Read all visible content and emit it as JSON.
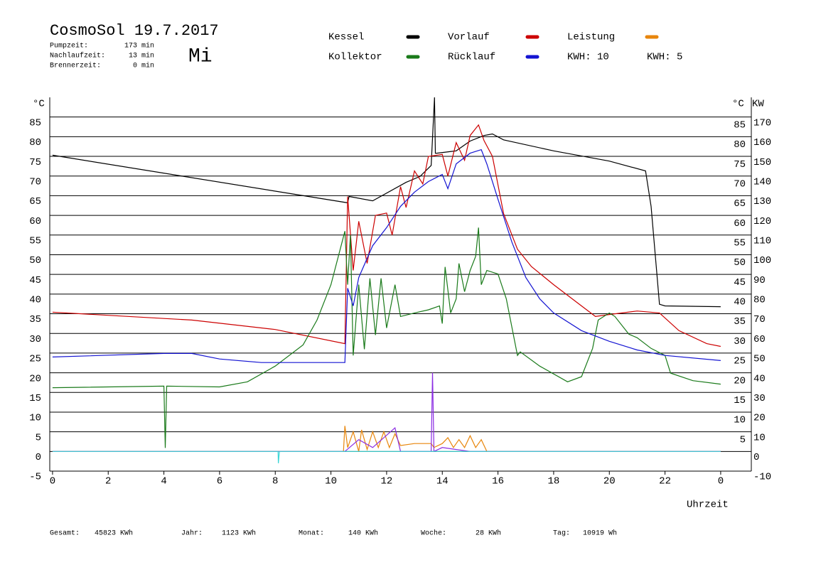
{
  "chart_data": {
    "type": "line",
    "title": "CosmoSol 19.7.2017",
    "weekday": "Mi",
    "weekday_color": "#1a1ad6",
    "info": [
      {
        "label": "Pumpzeit:",
        "value": "173 min"
      },
      {
        "label": "Nachlaufzeit:",
        "value": "13 min"
      },
      {
        "label": "Brennerzeit:",
        "value": "0 min"
      }
    ],
    "kwh_labels": [
      {
        "text": "KWH: 10",
        "color": "#e8860c"
      },
      {
        "text": "KWH: 5",
        "color": "#8a2be2"
      }
    ],
    "y_label": "°C",
    "y_label_right": "°C",
    "y2_label": "KW",
    "x_label": "Uhrzeit",
    "footer": [
      {
        "label": "Gesamt:",
        "value": "45823 KWh"
      },
      {
        "label": "Jahr:",
        "value": "1123 KWh"
      },
      {
        "label": "Monat:",
        "value": "140 KWh"
      },
      {
        "label": "Woche:",
        "value": "28 KWh"
      },
      {
        "label": "Tag:",
        "value": "10919 Wh"
      }
    ],
    "xlim": [
      -0.1,
      25.1
    ],
    "xticks": [
      0,
      2,
      4,
      6,
      8,
      10,
      12,
      14,
      16,
      18,
      20,
      22,
      {
        "value": 24,
        "label": "0"
      }
    ],
    "ylim": [
      -5,
      90
    ],
    "yticks": [
      -5,
      0,
      5,
      10,
      15,
      20,
      25,
      30,
      35,
      40,
      45,
      50,
      55,
      60,
      65,
      70,
      75,
      80,
      85
    ],
    "yticks_right": [
      5,
      10,
      15,
      20,
      25,
      30,
      35,
      40,
      45,
      50,
      55,
      60,
      65,
      70,
      75,
      80,
      85
    ],
    "y2lim": [
      -10,
      180
    ],
    "y2ticks": [
      -10,
      0,
      10,
      20,
      30,
      40,
      50,
      60,
      70,
      80,
      90,
      100,
      110,
      120,
      130,
      140,
      150,
      160,
      170
    ],
    "y2_color": "#e8860c",
    "grid": true,
    "series": [
      {
        "name": "Kessel",
        "color": "#000000",
        "x": [
          0,
          10.6,
          10.65,
          11.5,
          12.7,
          13.2,
          13.6,
          13.72,
          13.75,
          13.8,
          14.5,
          15,
          15.5,
          15.8,
          16.2,
          18,
          20,
          21.3,
          21.5,
          21.8,
          22,
          24
        ],
        "values": [
          75.3,
          63.2,
          64.8,
          63.7,
          68.4,
          69.9,
          72.7,
          90,
          75.8,
          75.8,
          76.4,
          78.9,
          80.3,
          80.7,
          79.2,
          76.4,
          73.8,
          71.3,
          62.3,
          37.4,
          37,
          36.8
        ]
      },
      {
        "name": "Vorlauf",
        "color": "#cc0000",
        "x": [
          0,
          5,
          8,
          10.5,
          10.6,
          10.8,
          11,
          11.3,
          11.6,
          12,
          12.2,
          12.5,
          12.7,
          13,
          13.3,
          13.5,
          14,
          14.2,
          14.5,
          14.8,
          15,
          15.3,
          15.5,
          15.8,
          16.2,
          16.7,
          17.2,
          18,
          19,
          19.5,
          20,
          21,
          21.8,
          22.5,
          23.5,
          24
        ],
        "values": [
          35.4,
          33.4,
          31,
          27.4,
          64.8,
          46,
          58.5,
          47.8,
          60,
          60.6,
          55,
          67.3,
          62,
          71.3,
          68,
          75,
          75.5,
          70,
          78.5,
          74,
          80.3,
          83,
          79,
          75,
          60.5,
          51.4,
          47,
          42.4,
          37,
          34.3,
          34.8,
          35.7,
          35.2,
          30.7,
          27.4,
          26.7
        ]
      },
      {
        "name": "Leistung",
        "color": "#e8860c",
        "axis": "y2",
        "x": [
          0,
          10.45,
          10.5,
          10.6,
          10.8,
          11,
          11.1,
          11.3,
          11.5,
          11.7,
          11.9,
          12.1,
          12.3,
          12.5,
          13,
          13.6,
          13.7,
          14,
          14.2,
          14.4,
          14.6,
          14.8,
          15,
          15.2,
          15.4,
          15.6,
          24
        ],
        "values": [
          0,
          0,
          13,
          2,
          10,
          0,
          11,
          1,
          10,
          2,
          10,
          2,
          9,
          3,
          4,
          4,
          2,
          4,
          7,
          2,
          6,
          2,
          8,
          2,
          6,
          0,
          0
        ]
      },
      {
        "name": "Kollektor",
        "color": "#1a7a1a",
        "x": [
          0,
          4,
          4.05,
          4.1,
          6,
          7,
          8,
          9,
          9.5,
          10,
          10.4,
          10.5,
          10.6,
          10.7,
          10.8,
          11,
          11.2,
          11.4,
          11.6,
          11.8,
          12,
          12.3,
          12.5,
          13,
          13.5,
          13.9,
          14,
          14.1,
          14.3,
          14.5,
          14.6,
          14.8,
          15,
          15.2,
          15.3,
          15.4,
          15.6,
          16,
          16.3,
          16.7,
          16.8,
          17.5,
          18.5,
          19,
          19.4,
          19.6,
          20,
          20.2,
          20.7,
          21,
          21.5,
          22,
          22.2,
          23,
          24
        ],
        "values": [
          16.2,
          16.6,
          0.9,
          16.6,
          16.4,
          17.7,
          21.7,
          27.1,
          33.4,
          42.4,
          53.2,
          56,
          42.4,
          55,
          24.4,
          42.4,
          26,
          44,
          29.6,
          44,
          31.4,
          42.4,
          34.3,
          35.2,
          36,
          37,
          32.5,
          46.9,
          35.2,
          38.8,
          47.8,
          40.6,
          46,
          49.6,
          56.9,
          42.4,
          46,
          45.1,
          38.8,
          24.4,
          25.3,
          21.7,
          17.7,
          19,
          26.2,
          33.4,
          35.2,
          34.3,
          29.8,
          28.9,
          26.2,
          24.4,
          19.9,
          18,
          17.1
        ]
      },
      {
        "name": "Rücklauf",
        "color": "#1414d2",
        "x": [
          0,
          4,
          5,
          6,
          7.5,
          10.5,
          10.6,
          10.8,
          11,
          11.5,
          12,
          12.5,
          13,
          13.5,
          14,
          14.2,
          14.5,
          15,
          15.4,
          15.6,
          16,
          16.5,
          17,
          17.5,
          18,
          19,
          20,
          21,
          22,
          24
        ],
        "values": [
          24,
          24.9,
          24.9,
          23.5,
          22.6,
          22.6,
          41.5,
          37,
          44.2,
          52.3,
          56.9,
          62.3,
          65.9,
          68.6,
          70.4,
          66.8,
          73.1,
          75.8,
          76.7,
          73.1,
          64.1,
          53.2,
          44.2,
          38.8,
          35.2,
          30.7,
          28,
          25.8,
          24.4,
          23.1
        ]
      },
      {
        "color": "#8a2be2",
        "x": [
          0,
          10.5,
          11,
          11.5,
          12.3,
          12.5,
          13.6,
          13.65,
          13.7,
          14,
          15,
          24
        ],
        "values": [
          0,
          0,
          3,
          1,
          6,
          0,
          0,
          20,
          0,
          1,
          0,
          0
        ]
      },
      {
        "color": "#3cd6d6",
        "x": [
          0,
          8.1,
          8.11,
          8.15,
          24
        ],
        "values": [
          0,
          0,
          -3,
          0,
          0
        ]
      }
    ]
  }
}
